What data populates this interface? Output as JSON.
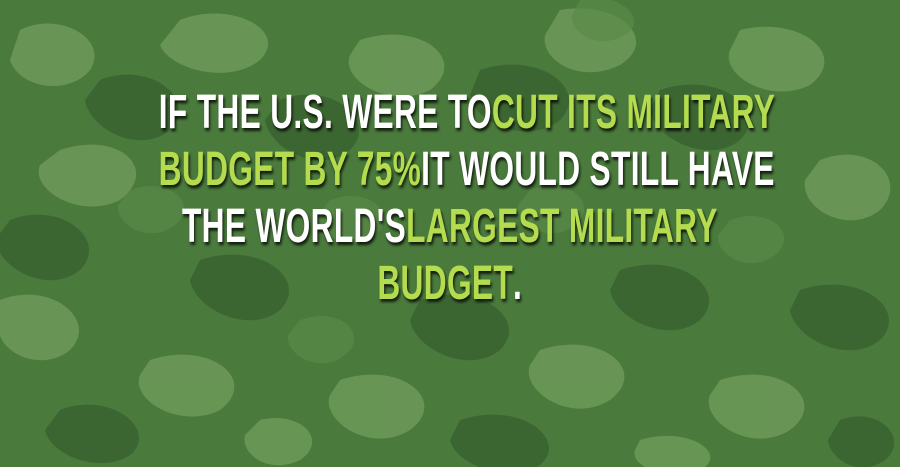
{
  "colors": {
    "background": "#4a7a3c",
    "camo_dark": "#3a6430",
    "camo_light": "#6d9a59",
    "text_white": "#ffffff",
    "text_highlight": "#b5dc4f"
  },
  "fact": {
    "line1": {
      "white": "IF THE U.S. WERE TO ",
      "green": "CUT ITS MILITARY"
    },
    "line2": {
      "green": "BUDGET BY 75%",
      "white": " IT WOULD STILL HAVE"
    },
    "line3": {
      "white": "THE WORLD'S ",
      "green": "LARGEST MILITARY"
    },
    "line4": {
      "green": "BUDGET",
      "white": "."
    }
  }
}
